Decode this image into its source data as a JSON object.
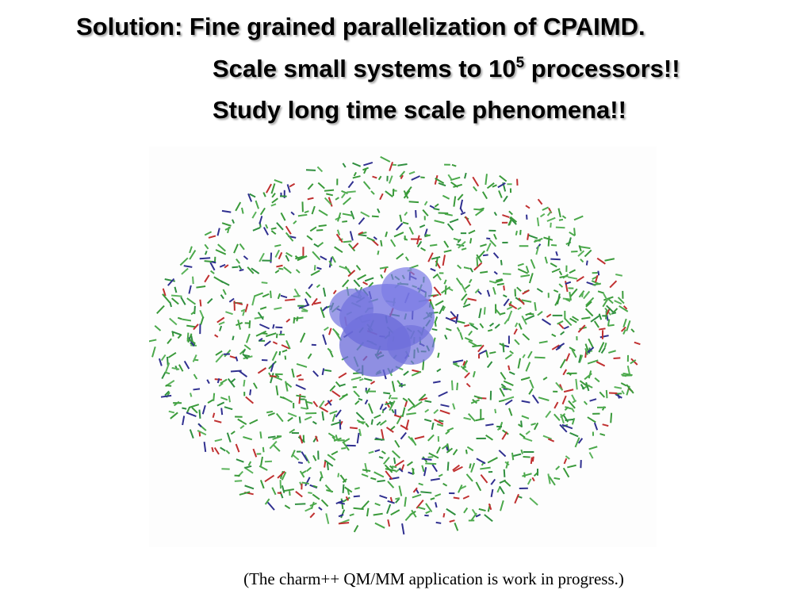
{
  "heading": {
    "line1": "Solution: Fine grained parallelization of CPAIMD.",
    "line2": {
      "before": "Scale small systems to 10",
      "superscript": "5",
      "after": " processors!!"
    },
    "line3": "Study long time scale phenomena!!"
  },
  "figure": {
    "caption": "(The charm++ QM/MM application is work in progress.)"
  }
}
